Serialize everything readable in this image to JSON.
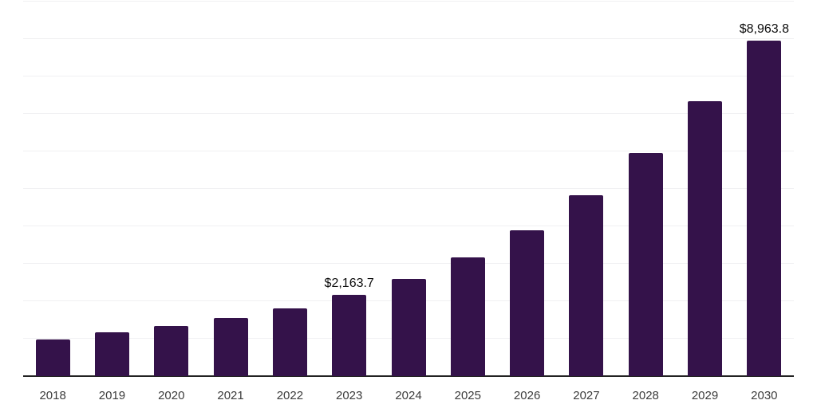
{
  "chart_data": {
    "type": "bar",
    "title": "",
    "xlabel": "",
    "ylabel": "",
    "categories": [
      "2018",
      "2019",
      "2020",
      "2021",
      "2022",
      "2023",
      "2024",
      "2025",
      "2026",
      "2027",
      "2028",
      "2029",
      "2030"
    ],
    "values": [
      980,
      1175,
      1335,
      1560,
      1805,
      2163.7,
      2590,
      3170,
      3890,
      4825,
      5965,
      7350,
      8963.8
    ],
    "labeled_points": [
      {
        "category": "2023",
        "label": "$2,163.7"
      },
      {
        "category": "2030",
        "label": "$8,963.8"
      }
    ],
    "ylim": [
      0,
      10000
    ],
    "gridline_interval": 1000,
    "grid": "horizontal-only",
    "y_tick_labels_visible": false,
    "legend_position": "none",
    "colors": {
      "bar": "#34124a",
      "grid_line": "#f0f0f2",
      "axis_line": "#222222",
      "tick_label": "#3c3c3c",
      "data_label": "#0d0d0d",
      "background": "#ffffff"
    }
  }
}
